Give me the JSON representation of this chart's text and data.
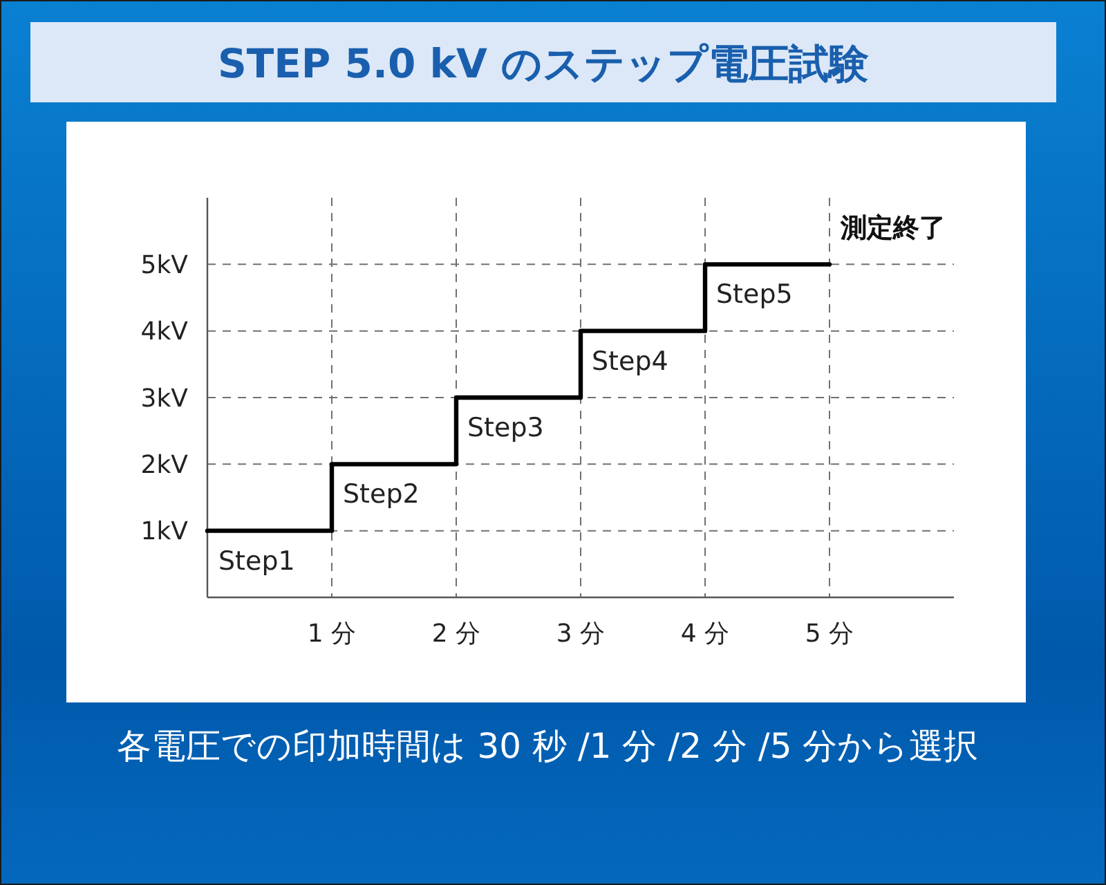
{
  "chart_data": {
    "type": "step",
    "title": "STEP 5.0 kV のステップ電圧試験",
    "x": [
      0,
      1,
      2,
      3,
      4,
      5
    ],
    "series": [
      {
        "color": "#000000",
        "values": [
          1,
          2,
          3,
          4,
          5,
          5
        ]
      }
    ],
    "xlim": [
      0,
      6
    ],
    "xticks": [
      {
        "value": 1,
        "label": "1 分"
      },
      {
        "value": 2,
        "label": "2 分"
      },
      {
        "value": 3,
        "label": "3 分"
      },
      {
        "value": 4,
        "label": "4 分"
      },
      {
        "value": 5,
        "label": "5 分"
      }
    ],
    "ylim": [
      0,
      6
    ],
    "yticks": [
      {
        "value": 1,
        "label": "1kV"
      },
      {
        "value": 2,
        "label": "2kV"
      },
      {
        "value": 3,
        "label": "3kV"
      },
      {
        "value": 4,
        "label": "4kV"
      },
      {
        "value": 5,
        "label": "5kV"
      }
    ],
    "grid": true,
    "line_style": "solid",
    "marker": "none",
    "annotations": [
      {
        "text": "Step1",
        "x": 0,
        "y": 1
      },
      {
        "text": "Step2",
        "x": 1,
        "y": 2
      },
      {
        "text": "Step3",
        "x": 2,
        "y": 3
      },
      {
        "text": "Step4",
        "x": 3,
        "y": 4
      },
      {
        "text": "Step5",
        "x": 4,
        "y": 5
      },
      {
        "text": "測定終了",
        "x": 5,
        "y": 5
      },
      "各電圧での印加時間は 30 秒 /1 分 /2 分 /5 分から選択"
    ]
  }
}
